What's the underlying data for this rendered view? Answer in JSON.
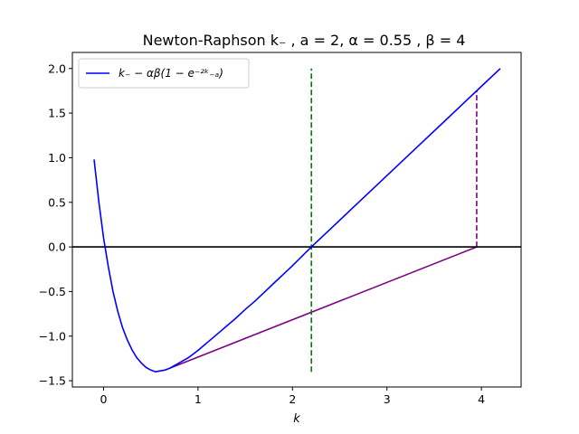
{
  "chart_data": {
    "type": "line",
    "title": "Newton-Raphson k₋ , a = 2, α = 0.55 , β = 4",
    "xlabel": "k",
    "ylabel": "",
    "xlim": [
      -0.33,
      4.42
    ],
    "ylim": [
      -1.57,
      2.18
    ],
    "grid": false,
    "legend": {
      "placement": "top-left",
      "label": "k₋ − αβ(1 − e⁻²ᵏ₋ₐ)"
    },
    "x_ticks": [
      0,
      1,
      2,
      3,
      4
    ],
    "y_ticks": [
      -1.5,
      -1.0,
      -0.5,
      0.0,
      0.5,
      1.0,
      1.5,
      2.0
    ],
    "x_tick_labels": [
      "0",
      "1",
      "2",
      "3",
      "4"
    ],
    "y_tick_labels": [
      "−1.5",
      "−1.0",
      "−0.5",
      "0.0",
      "0.5",
      "1.0",
      "1.5",
      "2.0"
    ],
    "series": [
      {
        "name": "k₋ − αβ(1 − e⁻²ᵏ₋ₐ)",
        "color": "#0000ff",
        "style": "solid",
        "x": [
          -0.1,
          -0.05,
          0.0,
          0.05,
          0.1,
          0.15,
          0.2,
          0.25,
          0.3,
          0.35,
          0.4,
          0.45,
          0.5,
          0.55,
          0.6,
          0.65,
          0.7,
          0.75,
          0.8,
          0.85,
          0.9,
          0.95,
          1.0,
          1.1,
          1.2,
          1.3,
          1.4,
          1.5,
          1.6,
          1.7,
          1.8,
          1.9,
          2.0,
          2.2,
          2.4,
          2.6,
          2.8,
          3.0,
          3.2,
          3.4,
          3.6,
          3.8,
          4.0,
          4.2
        ],
        "y": [
          0.98,
          0.51,
          0.1,
          -0.22,
          -0.5,
          -0.72,
          -0.9,
          -1.04,
          -1.15,
          -1.24,
          -1.3,
          -1.35,
          -1.38,
          -1.4,
          -1.39,
          -1.38,
          -1.36,
          -1.33,
          -1.3,
          -1.27,
          -1.24,
          -1.2,
          -1.16,
          -1.07,
          -0.98,
          -0.89,
          -0.8,
          -0.7,
          -0.61,
          -0.51,
          -0.41,
          -0.31,
          -0.21,
          0.0,
          0.2,
          0.4,
          0.6,
          0.8,
          1.0,
          1.2,
          1.4,
          1.6,
          1.8,
          2.0
        ]
      }
    ],
    "annotation_lines": [
      {
        "color": "#800080",
        "style": "solid",
        "x": [
          0.7,
          3.95
        ],
        "y": [
          -1.36,
          0.0
        ]
      },
      {
        "color": "#008000",
        "style": "dashed",
        "x": [
          2.2,
          2.2
        ],
        "y": [
          -1.4,
          2.0
        ]
      },
      {
        "color": "#800080",
        "style": "dashed",
        "x": [
          3.95,
          3.95
        ],
        "y": [
          0.0,
          1.75
        ]
      },
      {
        "color": "#000000",
        "style": "solid",
        "x": [
          -0.33,
          4.42
        ],
        "y": [
          0.0,
          0.0
        ]
      }
    ]
  }
}
